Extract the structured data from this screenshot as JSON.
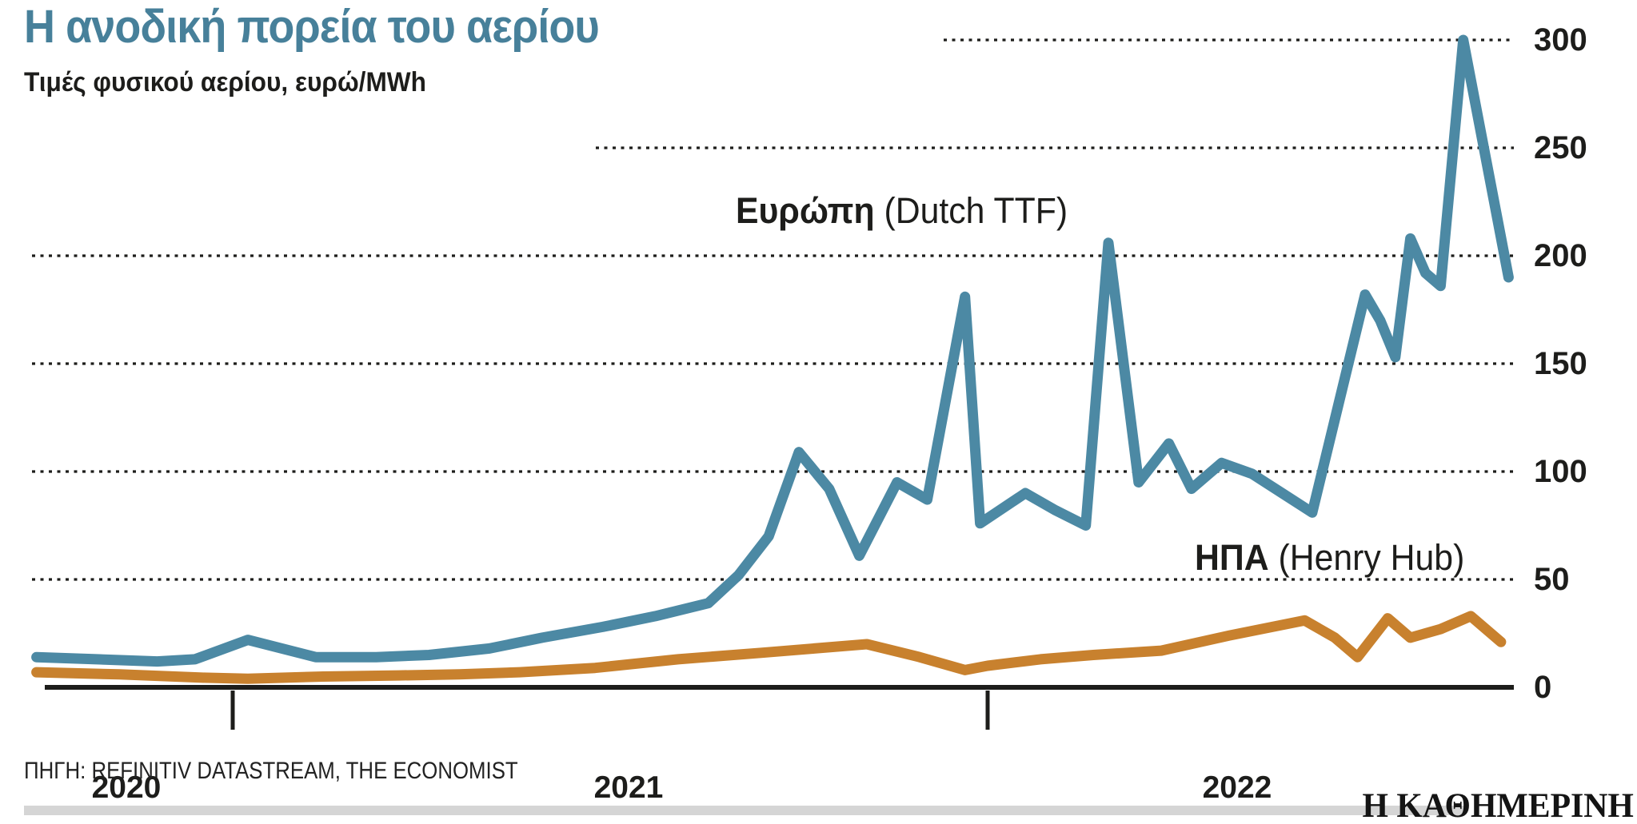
{
  "header": {
    "title": "Η ανοδική πορεία του αερίου",
    "subtitle": "Τιμές φυσικού αερίου, ευρώ/MWh"
  },
  "colors": {
    "title_teal": "#47809a",
    "europe_line": "#4c89a4",
    "usa_line": "#c8812e",
    "axis_black": "#1d1d1b",
    "gray_rule": "#d5d5d5"
  },
  "chart_data": {
    "type": "line",
    "title": "Η ανοδική πορεία του αερίου",
    "subtitle_ylabel": "Τιμές φυσικού αερίου, ευρώ/MWh",
    "xlabel": "",
    "ylabel": "ευρώ/MWh",
    "ylim": [
      0,
      300
    ],
    "y_ticks": [
      300,
      250,
      200,
      150,
      100,
      50,
      0
    ],
    "x_year_labels": [
      "2020",
      "2021",
      "2022"
    ],
    "x_tick_year_starts": [
      2021,
      2022
    ],
    "grid": "dotted horizontal lines at every 50",
    "legend_position": "labels next to lines",
    "series": [
      {
        "name": "Ευρώπη (Dutch TTF)",
        "label_bold": "Ευρώπη",
        "label_rest": " (Dutch TTF)",
        "color": "#4c89a4",
        "points": [
          [
            2020.74,
            14
          ],
          [
            2020.82,
            13
          ],
          [
            2020.9,
            12
          ],
          [
            2020.95,
            13
          ],
          [
            2021.02,
            22
          ],
          [
            2021.11,
            14
          ],
          [
            2021.19,
            14
          ],
          [
            2021.26,
            15
          ],
          [
            2021.34,
            18
          ],
          [
            2021.41,
            23
          ],
          [
            2021.49,
            28
          ],
          [
            2021.56,
            33
          ],
          [
            2021.63,
            39
          ],
          [
            2021.67,
            52
          ],
          [
            2021.71,
            70
          ],
          [
            2021.75,
            109
          ],
          [
            2021.79,
            92
          ],
          [
            2021.83,
            61
          ],
          [
            2021.88,
            95
          ],
          [
            2021.92,
            87
          ],
          [
            2021.97,
            181
          ],
          [
            2021.99,
            76
          ],
          [
            2022.05,
            90
          ],
          [
            2022.09,
            82
          ],
          [
            2022.13,
            75
          ],
          [
            2022.16,
            206
          ],
          [
            2022.2,
            95
          ],
          [
            2022.24,
            113
          ],
          [
            2022.27,
            92
          ],
          [
            2022.31,
            104
          ],
          [
            2022.35,
            99
          ],
          [
            2022.39,
            90
          ],
          [
            2022.43,
            81
          ],
          [
            2022.5,
            182
          ],
          [
            2022.52,
            170
          ],
          [
            2022.54,
            153
          ],
          [
            2022.56,
            208
          ],
          [
            2022.58,
            192
          ],
          [
            2022.6,
            186
          ],
          [
            2022.63,
            300
          ],
          [
            2022.69,
            190
          ]
        ]
      },
      {
        "name": "ΗΠΑ (Henry Hub)",
        "label_bold": "ΗΠΑ",
        "label_rest": " (Henry Hub)",
        "color": "#c8812e",
        "points": [
          [
            2020.74,
            7
          ],
          [
            2020.85,
            6
          ],
          [
            2020.96,
            4.5
          ],
          [
            2021.02,
            4
          ],
          [
            2021.12,
            5
          ],
          [
            2021.22,
            5.5
          ],
          [
            2021.3,
            6
          ],
          [
            2021.38,
            7
          ],
          [
            2021.48,
            9
          ],
          [
            2021.59,
            13
          ],
          [
            2021.7,
            16
          ],
          [
            2021.77,
            18
          ],
          [
            2021.84,
            20
          ],
          [
            2021.91,
            14
          ],
          [
            2021.97,
            8
          ],
          [
            2022.0,
            10
          ],
          [
            2022.07,
            13
          ],
          [
            2022.14,
            15
          ],
          [
            2022.23,
            17
          ],
          [
            2022.32,
            24
          ],
          [
            2022.42,
            31
          ],
          [
            2022.46,
            23
          ],
          [
            2022.49,
            14
          ],
          [
            2022.53,
            32
          ],
          [
            2022.56,
            23
          ],
          [
            2022.6,
            27
          ],
          [
            2022.64,
            33
          ],
          [
            2022.68,
            21
          ]
        ]
      }
    ]
  },
  "footer": {
    "source": "ΠΗΓΗ: REFINITIV DATASTREAM, THE ECONOMIST",
    "logo": "Η ΚΑΘΗΜΕΡΙΝΗ"
  }
}
